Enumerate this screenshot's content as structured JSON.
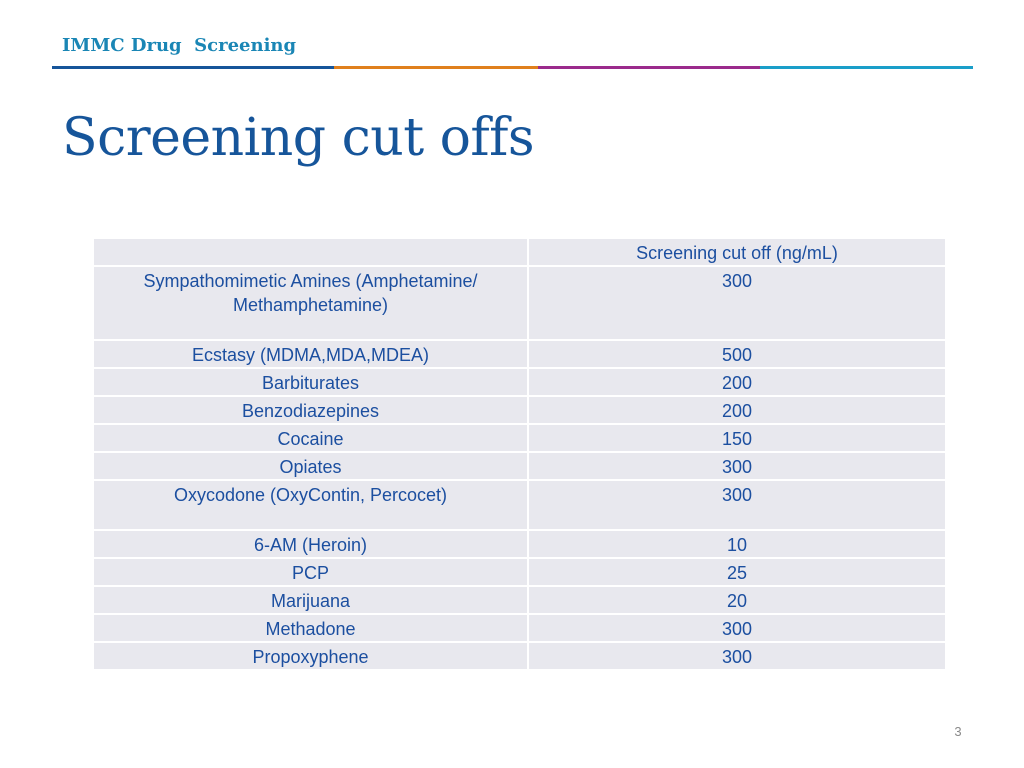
{
  "header": {
    "title": "IMMC Drug  Screening",
    "rule_colors": [
      "#16559a",
      "#e0801c",
      "#9b2a8c",
      "#1a9ec9"
    ]
  },
  "page_title": "Screening cut offs",
  "table": {
    "header": [
      "",
      "Screening cut off (ng/mL)"
    ],
    "rows": [
      {
        "drug_lines": [
          "Sympathomimetic Amines (Amphetamine/",
          "Methamphetamine)"
        ],
        "cutoff": "300"
      },
      {
        "drug": "Ecstasy (MDMA,MDA,MDEA)",
        "cutoff": "500"
      },
      {
        "drug": "Barbiturates",
        "cutoff": "200"
      },
      {
        "drug": "Benzodiazepines",
        "cutoff": "200"
      },
      {
        "drug": "Cocaine",
        "cutoff": "150"
      },
      {
        "drug": "Opiates",
        "cutoff": "300"
      },
      {
        "drug": "Oxycodone (OxyContin, Percocet)",
        "cutoff": "300"
      },
      {
        "drug": "6-AM (Heroin)",
        "cutoff": "10"
      },
      {
        "drug": "PCP",
        "cutoff": "25"
      },
      {
        "drug": "Marijuana",
        "cutoff": "20"
      },
      {
        "drug": "Methadone",
        "cutoff": "300"
      },
      {
        "drug": "Propoxyphene",
        "cutoff": "300"
      }
    ]
  },
  "page_number": "3"
}
